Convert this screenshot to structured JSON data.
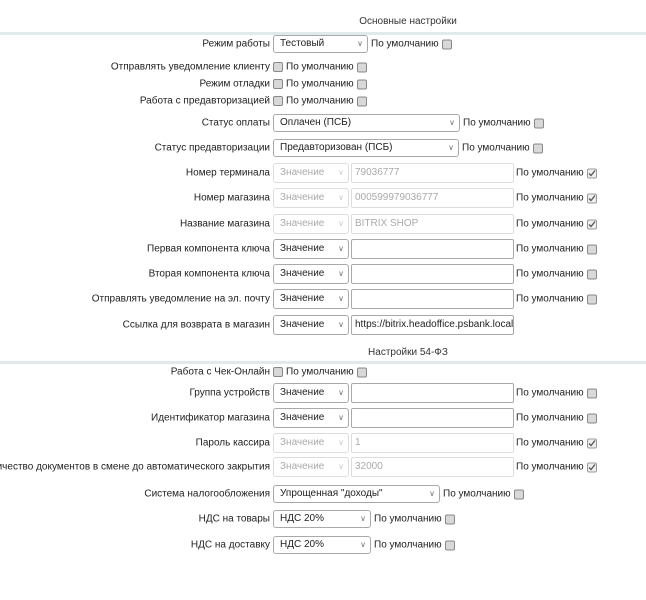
{
  "sections": [
    {
      "title": "Основные настройки",
      "rows": [
        {
          "label": "Режим работы",
          "type": "select",
          "value": "Тестовый",
          "default_label": "По умолчанию",
          "default_checked": false
        },
        {
          "label": "Отправлять уведомление клиенту",
          "type": "checkbox",
          "checked": false,
          "default_label": "По умолчанию",
          "default_checked": false
        },
        {
          "label": "Режим отладки",
          "type": "checkbox",
          "checked": false,
          "default_label": "По умолчанию",
          "default_checked": false
        },
        {
          "label": "Работа с предавторизацией",
          "type": "checkbox",
          "checked": false,
          "default_label": "По умолчанию",
          "default_checked": false
        },
        {
          "label": "Статус оплаты",
          "type": "select",
          "value": "Оплачен (ПСБ)",
          "default_label": "По умолчанию",
          "default_checked": false
        },
        {
          "label": "Статус предавторизации",
          "type": "select",
          "value": "Предавторизован (ПСБ)",
          "default_label": "По умолчанию",
          "default_checked": false
        },
        {
          "label": "Номер терминала",
          "type": "pair",
          "source": "Значение",
          "value": "79036777",
          "disabled": true,
          "default_label": "По умолчанию",
          "default_checked": true
        },
        {
          "label": "Номер магазина",
          "type": "pair",
          "source": "Значение",
          "value": "000599979036777",
          "disabled": true,
          "default_label": "По умолчанию",
          "default_checked": true
        },
        {
          "label": "Название магазина",
          "type": "pair",
          "source": "Значение",
          "value": "BITRIX SHOP",
          "disabled": true,
          "default_label": "По умолчанию",
          "default_checked": true
        },
        {
          "label": "Первая компонента ключа",
          "type": "pair",
          "source": "Значение",
          "value": "",
          "disabled": false,
          "default_label": "По умолчанию",
          "default_checked": false
        },
        {
          "label": "Вторая компонента ключа",
          "type": "pair",
          "source": "Значение",
          "value": "",
          "disabled": false,
          "default_label": "По умолчанию",
          "default_checked": false
        },
        {
          "label": "Отправлять уведомление на эл. почту",
          "type": "pair",
          "source": "Значение",
          "value": "",
          "disabled": false,
          "default_label": "По умолчанию",
          "default_checked": false
        },
        {
          "label": "Ссылка для возврата в магазин",
          "type": "pair",
          "source": "Значение",
          "value": "https://bitrix.headoffice.psbank.local/perso",
          "disabled": false
        }
      ]
    },
    {
      "title": "Настройки 54-ФЗ",
      "rows": [
        {
          "label": "Работа с Чек-Онлайн",
          "type": "checkbox",
          "checked": false,
          "default_label": "По умолчанию",
          "default_checked": false
        },
        {
          "label": "Группа устройств",
          "type": "pair",
          "source": "Значение",
          "value": "",
          "disabled": false,
          "default_label": "По умолчанию",
          "default_checked": false
        },
        {
          "label": "Идентификатор магазина",
          "type": "pair",
          "source": "Значение",
          "value": "",
          "disabled": false,
          "default_label": "По умолчанию",
          "default_checked": false
        },
        {
          "label": "Пароль кассира",
          "type": "pair",
          "source": "Значение",
          "value": "1",
          "disabled": true,
          "default_label": "По умолчанию",
          "default_checked": true
        },
        {
          "label": "Количество документов в смене до автоматического закрытия",
          "type": "pair",
          "source": "Значение",
          "value": "32000",
          "disabled": true,
          "default_label": "По умолчанию",
          "default_checked": true
        },
        {
          "label": "Система налогообложения",
          "type": "select",
          "value": "Упрощенная \"доходы\"",
          "default_label": "По умолчанию",
          "default_checked": false
        },
        {
          "label": "НДС на товары",
          "type": "select",
          "value": "НДС 20%",
          "default_label": "По умолчанию",
          "default_checked": false
        },
        {
          "label": "НДС на доставку",
          "type": "select",
          "value": "НДС 20%",
          "default_label": "По умолчанию",
          "default_checked": false
        }
      ]
    }
  ]
}
